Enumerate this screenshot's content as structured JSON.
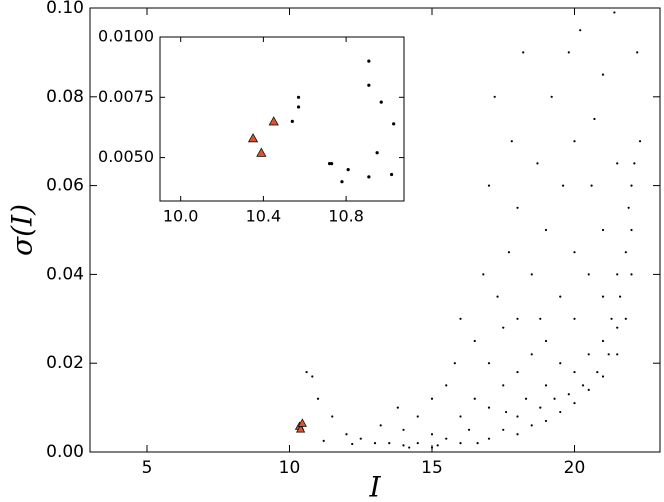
{
  "chart_data": [
    {
      "type": "scatter",
      "x_label": "I",
      "y_label": "σ(I)",
      "xlim": [
        3,
        23
      ],
      "ylim": [
        0,
        0.1
      ],
      "xticks": [
        5,
        10,
        15,
        20
      ],
      "yticks": [
        {
          "value": 0,
          "label": "0.00"
        },
        {
          "value": 0.02,
          "label": "0.02"
        },
        {
          "value": 0.04,
          "label": "0.04"
        },
        {
          "value": 0.06,
          "label": "0.06"
        },
        {
          "value": 0.08,
          "label": "0.08"
        },
        {
          "value": 0.1,
          "label": "0.10"
        }
      ],
      "series": [
        {
          "color": "#000000",
          "marker": "dot",
          "x": [
            10.6,
            10.8,
            11,
            11.5,
            12,
            12.5,
            13,
            13.5,
            14,
            11.2,
            12.2,
            13.2,
            13.8,
            14,
            14.5,
            14.5,
            15,
            15,
            15,
            15.5,
            15.5,
            15.8,
            16,
            16,
            16,
            16.3,
            16.5,
            16.5,
            16.8,
            17,
            17,
            17,
            17,
            17.2,
            17.3,
            17.5,
            17.5,
            17.5,
            17.7,
            17.8,
            18,
            18,
            18,
            18,
            18,
            18.2,
            18.3,
            18.5,
            18.5,
            18.5,
            18.7,
            18.8,
            19,
            19,
            19,
            19,
            19.2,
            19.3,
            19.5,
            19.5,
            19.5,
            19.6,
            19.8,
            20,
            20,
            20,
            20,
            20,
            20.2,
            20.3,
            20.5,
            20.5,
            20.5,
            20.6,
            20.8,
            21,
            21,
            21,
            21,
            21,
            21.2,
            21.3,
            21.5,
            21.5,
            21.5,
            21.5,
            21.6,
            21.8,
            21.8,
            21.9,
            22,
            22,
            22,
            22.1,
            22.2,
            22.3,
            21.4,
            20.7,
            19.8,
            18.8,
            17.6,
            16.6,
            15.2,
            14.2
          ],
          "values": [
            0.018,
            0.017,
            0.012,
            0.008,
            0.004,
            0.003,
            0.002,
            0.002,
            0.0015,
            0.0025,
            0.0018,
            0.006,
            0.01,
            0.005,
            0.008,
            0.002,
            0.001,
            0.004,
            0.012,
            0.003,
            0.015,
            0.02,
            0.002,
            0.008,
            0.03,
            0.005,
            0.012,
            0.025,
            0.04,
            0.003,
            0.01,
            0.02,
            0.06,
            0.08,
            0.035,
            0.005,
            0.015,
            0.028,
            0.045,
            0.07,
            0.004,
            0.008,
            0.018,
            0.03,
            0.055,
            0.09,
            0.012,
            0.006,
            0.022,
            0.04,
            0.065,
            0.01,
            0.007,
            0.015,
            0.025,
            0.05,
            0.08,
            0.012,
            0.009,
            0.02,
            0.035,
            0.06,
            0.013,
            0.011,
            0.018,
            0.03,
            0.045,
            0.07,
            0.095,
            0.015,
            0.014,
            0.022,
            0.04,
            0.06,
            0.018,
            0.017,
            0.025,
            0.035,
            0.05,
            0.085,
            0.022,
            0.03,
            0.022,
            0.028,
            0.04,
            0.065,
            0.035,
            0.03,
            0.045,
            0.055,
            0.04,
            0.05,
            0.06,
            0.065,
            0.09,
            0.07,
            0.099,
            0.075,
            0.09,
            0.03,
            0.009,
            0.002,
            0.0015,
            0.001
          ]
        },
        {
          "color": "#d9542c",
          "marker": "triangle",
          "x": [
            10.35,
            10.39,
            10.45
          ],
          "values": [
            0.0058,
            0.0052,
            0.0065
          ]
        }
      ]
    },
    {
      "type": "scatter",
      "xlim": [
        9.9,
        11.08
      ],
      "ylim": [
        0.0032,
        0.01
      ],
      "xticks": [
        {
          "value": 10,
          "label": "10.0"
        },
        10.4,
        10.8
      ],
      "yticks": [
        {
          "value": 0.005,
          "label": "0.0050"
        },
        0.0075,
        {
          "value": 0.01,
          "label": "0.0100"
        }
      ],
      "series": [
        {
          "color": "#000000",
          "marker": "dot",
          "x": [
            10.54,
            10.57,
            10.57,
            10.72,
            10.73,
            10.78,
            10.81,
            10.91,
            10.91,
            10.91,
            10.95,
            10.97,
            11.02,
            11.03
          ],
          "values": [
            0.0065,
            0.0075,
            0.0071,
            0.00475,
            0.00475,
            0.004,
            0.0045,
            0.009,
            0.008,
            0.0042,
            0.0052,
            0.0073,
            0.0043,
            0.0064
          ]
        },
        {
          "color": "#d9542c",
          "marker": "triangle",
          "x": [
            10.35,
            10.39,
            10.45
          ],
          "values": [
            0.0058,
            0.0052,
            0.0065
          ]
        }
      ]
    }
  ]
}
